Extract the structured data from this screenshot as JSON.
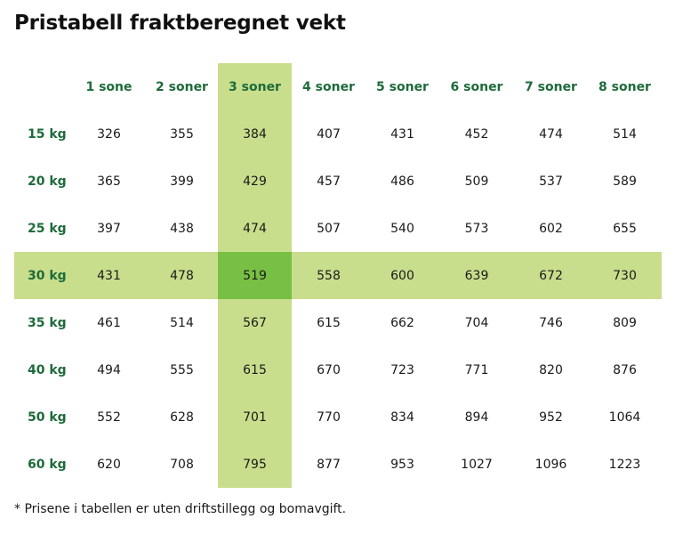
{
  "title": "Pristabell fraktberegnet vekt",
  "highlight": {
    "column": "3 soner",
    "row": "30 kg",
    "band_color": "#c8de8c",
    "cross_color": "#78c043",
    "header_text_color": "#1e6b3a"
  },
  "table": {
    "columns": [
      "1 sone",
      "2 soner",
      "3 soner",
      "4 soner",
      "5 soner",
      "6 soner",
      "7 soner",
      "8 soner"
    ],
    "rows": [
      {
        "weight": "15 kg",
        "values": [
          "326",
          "355",
          "384",
          "407",
          "431",
          "452",
          "474",
          "514"
        ]
      },
      {
        "weight": "20 kg",
        "values": [
          "365",
          "399",
          "429",
          "457",
          "486",
          "509",
          "537",
          "589"
        ]
      },
      {
        "weight": "25 kg",
        "values": [
          "397",
          "438",
          "474",
          "507",
          "540",
          "573",
          "602",
          "655"
        ]
      },
      {
        "weight": "30 kg",
        "values": [
          "431",
          "478",
          "519",
          "558",
          "600",
          "639",
          "672",
          "730"
        ]
      },
      {
        "weight": "35 kg",
        "values": [
          "461",
          "514",
          "567",
          "615",
          "662",
          "704",
          "746",
          "809"
        ]
      },
      {
        "weight": "40 kg",
        "values": [
          "494",
          "555",
          "615",
          "670",
          "723",
          "771",
          "820",
          "876"
        ]
      },
      {
        "weight": "50 kg",
        "values": [
          "552",
          "628",
          "701",
          "770",
          "834",
          "894",
          "952",
          "1064"
        ]
      },
      {
        "weight": "60 kg",
        "values": [
          "620",
          "708",
          "795",
          "877",
          "953",
          "1027",
          "1096",
          "1223"
        ]
      }
    ]
  },
  "footnote": "* Prisene i tabellen er uten driftstillegg og bomavgift."
}
